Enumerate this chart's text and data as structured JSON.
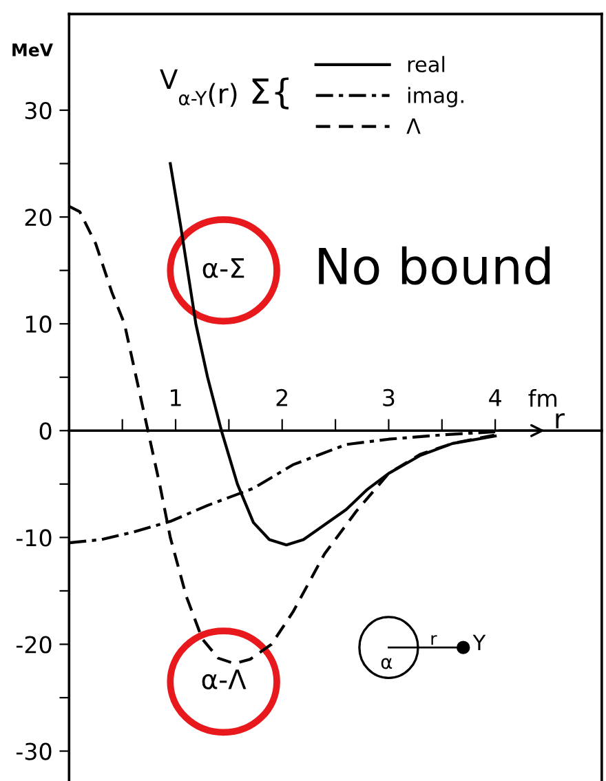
{
  "chart_data": {
    "type": "line",
    "title": "V$_{α-Y}$(r)",
    "xlabel": "r",
    "ylabel": "MeV",
    "xlim": [
      0,
      5.0
    ],
    "ylim": [
      -32.8,
      39
    ],
    "xticks": [
      {
        "value": 0.5,
        "label": null
      },
      1,
      {
        "value": 1.5,
        "label": null
      },
      2,
      {
        "value": 2.5,
        "label": null
      },
      3,
      {
        "value": 3.5,
        "label": null
      },
      4
    ],
    "yticks": [
      -30,
      {
        "value": -25,
        "label": null
      },
      -20,
      {
        "value": -15,
        "label": null
      },
      -10,
      {
        "value": -5,
        "label": null
      },
      0,
      {
        "value": 5,
        "label": null
      },
      10,
      {
        "value": 15,
        "label": null
      },
      20,
      {
        "value": 25,
        "label": null
      },
      30
    ],
    "grid": false,
    "legend": "top right",
    "marker": "none",
    "series": [
      {
        "name": "real",
        "color": "#000000",
        "line_style": "solid",
        "x": [
          0.95,
          1.05,
          1.19,
          1.3,
          1.43,
          1.58,
          1.73,
          1.88,
          2.04,
          2.2,
          2.4,
          2.6,
          2.8,
          3.0,
          3.3,
          3.6,
          4.0
        ],
        "values": [
          25,
          19,
          10,
          5,
          0,
          -5,
          -8.6,
          -10.2,
          -10.7,
          -10.2,
          -8.8,
          -7.4,
          -5.5,
          -4,
          -2.3,
          -1.2,
          -0.5
        ]
      },
      {
        "name": "imag.",
        "color": "#000000",
        "line_style": "dashdot",
        "x": [
          0,
          0.3,
          0.6,
          0.95,
          1.3,
          1.73,
          2.1,
          2.6,
          3.0,
          3.5,
          4.0
        ],
        "values": [
          -10.5,
          -10.2,
          -9.5,
          -8.5,
          -7,
          -5.4,
          -3.2,
          -1.3,
          -0.8,
          -0.4,
          -0.1
        ]
      },
      {
        "name": "Λ",
        "color": "#000000",
        "line_style": "dashed",
        "x": [
          0,
          0.1,
          0.25,
          0.4,
          0.52,
          0.63,
          0.74,
          0.85,
          0.95,
          1.1,
          1.25,
          1.4,
          1.55,
          1.7,
          1.9,
          2.1,
          2.4,
          2.7,
          3.0,
          3.3,
          3.6,
          4.0
        ],
        "values": [
          21,
          20.5,
          17.5,
          13,
          10,
          5,
          0,
          -5,
          -10,
          -15.5,
          -19.5,
          -21.3,
          -21.8,
          -21.4,
          -20,
          -17,
          -11.5,
          -7.5,
          -4,
          -2.2,
          -1.2,
          -0.4
        ]
      }
    ],
    "annotations": [
      "fm",
      "Σ{",
      "α-Σ",
      "No bound",
      "α-Λ",
      "α",
      "r",
      "Y"
    ]
  }
}
